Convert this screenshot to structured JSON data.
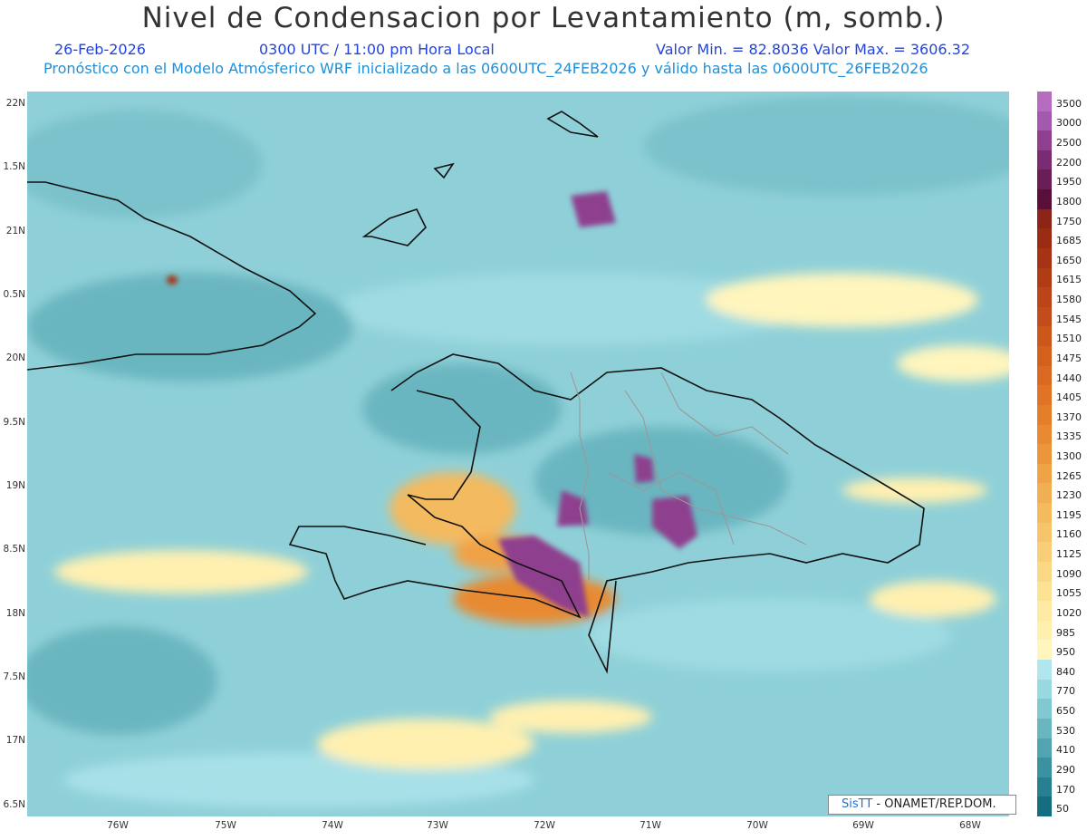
{
  "header": {
    "title": "Nivel de Condensacion por Levantamiento (m, somb.)",
    "date": "26-Feb-2026",
    "time": "0300 UTC / 11:00 pm Hora Local",
    "min_max": "Valor Min. = 82.8036   Valor Max. = 3606.32",
    "model_line": "Pronóstico con el Modelo Atmósferico WRF inicializado a las 0600UTC_24FEB2026 y válido hasta las  0600UTC_26FEB2026"
  },
  "axes": {
    "lat_labels": [
      "22N",
      "1.5N",
      "21N",
      "0.5N",
      "20N",
      "9.5N",
      "19N",
      "8.5N",
      "18N",
      "7.5N",
      "17N",
      "6.5N"
    ],
    "lon_labels": [
      "76W",
      "75W",
      "74W",
      "73W",
      "72W",
      "71W",
      "70W",
      "69W",
      "68W"
    ]
  },
  "colorbar": {
    "labels": [
      "3500",
      "3000",
      "2500",
      "2200",
      "1950",
      "1800",
      "1750",
      "1685",
      "1650",
      "1615",
      "1580",
      "1545",
      "1510",
      "1475",
      "1440",
      "1405",
      "1370",
      "1335",
      "1300",
      "1265",
      "1230",
      "1195",
      "1160",
      "1125",
      "1090",
      "1055",
      "1020",
      "985",
      "950",
      "840",
      "770",
      "650",
      "530",
      "410",
      "290",
      "170",
      "50"
    ],
    "colors": [
      "#b86cc0",
      "#a45aac",
      "#8e3f8e",
      "#7a2c72",
      "#6a1e58",
      "#5a0f3a",
      "#8c2418",
      "#9a2c14",
      "#a63414",
      "#b03c16",
      "#bb4418",
      "#c44c1a",
      "#cc561c",
      "#d4601e",
      "#da6a22",
      "#e07424",
      "#e47e2a",
      "#e88a32",
      "#ec963c",
      "#f0a246",
      "#f2ae52",
      "#f4ba5e",
      "#f6c46a",
      "#f8ce78",
      "#fad886",
      "#fce294",
      "#feeaa2",
      "#fff0b0",
      "#fff5bd",
      "#b2e6ee",
      "#9ad8e0",
      "#82c8d0",
      "#6ab6c0",
      "#52a4b0",
      "#3a92a0",
      "#268090",
      "#146e80"
    ]
  },
  "credit": {
    "sis": "SisTT",
    "rest": " - ONAMET/REP.DOM."
  }
}
